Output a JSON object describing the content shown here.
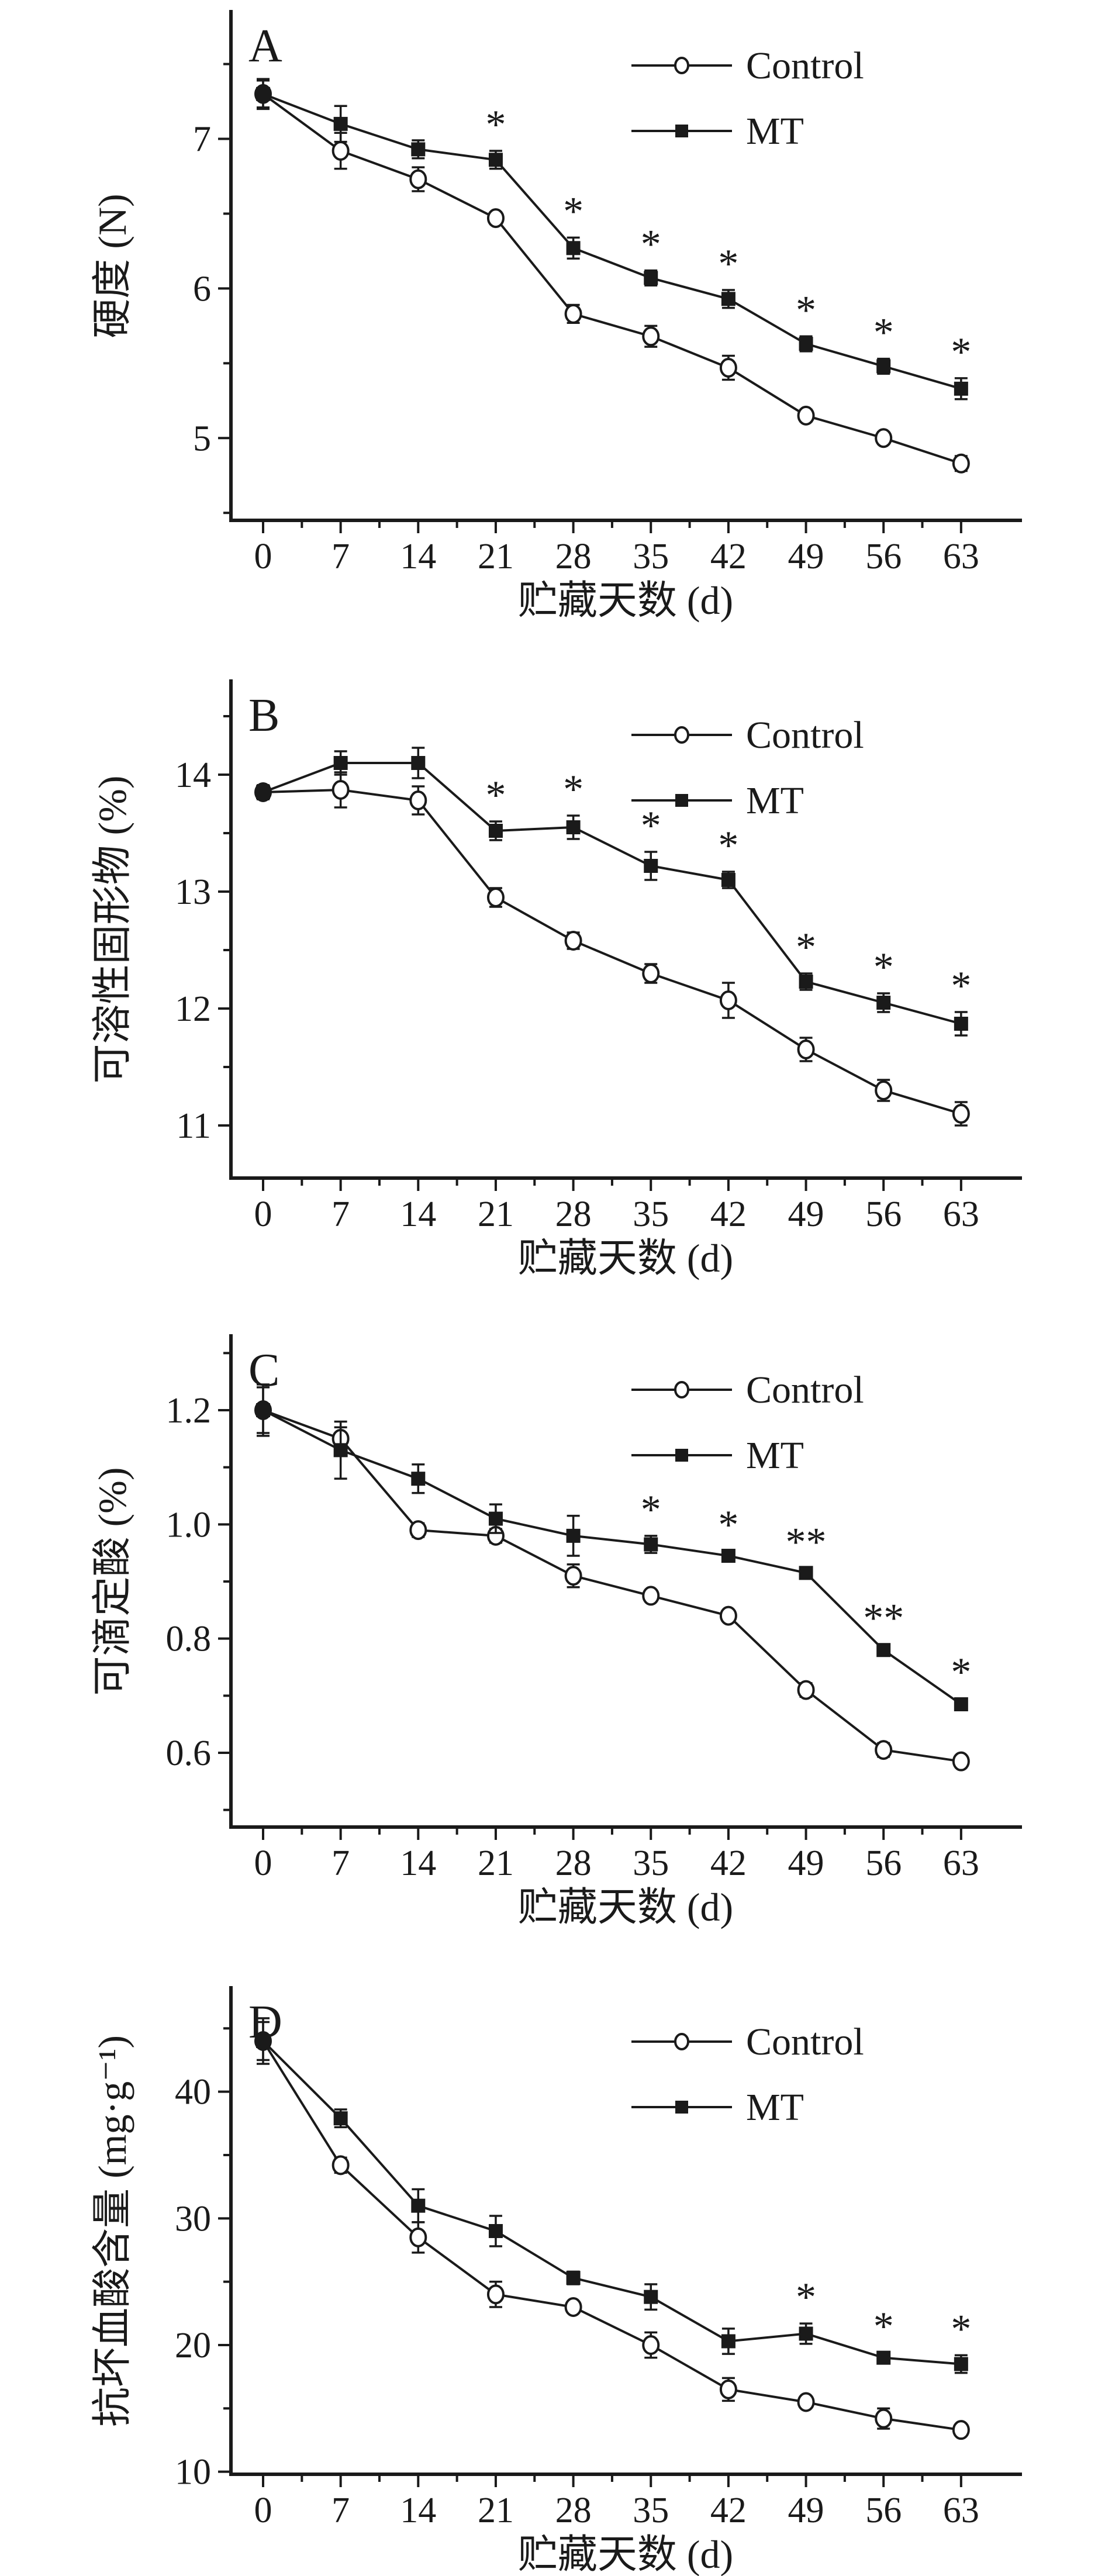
{
  "colors": {
    "foreground": "#1a1a1a",
    "background": "#ffffff"
  },
  "chart_data": [
    {
      "type": "line",
      "panel_label": "A",
      "xlabel": "贮藏天数 (d)",
      "ylabel": "硬度 (N)",
      "x": [
        0,
        7,
        14,
        21,
        28,
        35,
        42,
        49,
        56,
        63
      ],
      "xtick_labels": [
        "0",
        "7",
        "14",
        "21",
        "28",
        "35",
        "42",
        "49",
        "56",
        "63"
      ],
      "xminor": [
        3.5,
        10.5,
        17.5,
        24.5,
        31.5,
        38.5,
        45.5,
        52.5,
        59.5
      ],
      "ylim": [
        4.45,
        7.85
      ],
      "yticks": [
        {
          "v": 5,
          "label": "5"
        },
        {
          "v": 6,
          "label": "6"
        },
        {
          "v": 7,
          "label": "7"
        }
      ],
      "yminor": [
        4.5,
        5.5,
        6.5,
        7.5
      ],
      "grid": false,
      "legend_position": "top-right",
      "series": [
        {
          "name": "Control",
          "marker": "open-circle",
          "values": [
            7.3,
            6.92,
            6.73,
            6.47,
            5.83,
            5.68,
            5.47,
            5.15,
            5.0,
            4.83
          ],
          "errors": [
            0.1,
            0.12,
            0.08,
            0.04,
            0.06,
            0.07,
            0.08,
            0.04,
            0.04,
            0.05
          ],
          "significance": [
            "",
            "",
            "",
            "",
            "",
            "",
            "",
            "",
            "",
            ""
          ]
        },
        {
          "name": "MT",
          "marker": "filled-square",
          "values": [
            7.3,
            7.1,
            6.93,
            6.86,
            6.27,
            6.07,
            5.93,
            5.63,
            5.48,
            5.33
          ],
          "errors": [
            0.09,
            0.12,
            0.06,
            0.06,
            0.07,
            0.05,
            0.06,
            0.05,
            0.05,
            0.07
          ],
          "significance": [
            "",
            "",
            "",
            "*",
            "*",
            "*",
            "*",
            "*",
            "*",
            "*"
          ]
        }
      ]
    },
    {
      "type": "line",
      "panel_label": "B",
      "xlabel": "贮藏天数 (d)",
      "ylabel": "可溶性固形物 (%)",
      "x": [
        0,
        7,
        14,
        21,
        28,
        35,
        42,
        49,
        56,
        63
      ],
      "xtick_labels": [
        "0",
        "7",
        "14",
        "21",
        "28",
        "35",
        "42",
        "49",
        "56",
        "63"
      ],
      "xminor": [
        3.5,
        10.5,
        17.5,
        24.5,
        31.5,
        38.5,
        45.5,
        52.5,
        59.5
      ],
      "ylim": [
        10.55,
        14.8
      ],
      "yticks": [
        {
          "v": 11,
          "label": "11"
        },
        {
          "v": 12,
          "label": "12"
        },
        {
          "v": 13,
          "label": "13"
        },
        {
          "v": 14,
          "label": "14"
        }
      ],
      "yminor": [
        11.5,
        12.5,
        13.5,
        14.5
      ],
      "grid": false,
      "legend_position": "top-right",
      "series": [
        {
          "name": "Control",
          "marker": "open-circle",
          "values": [
            13.85,
            13.87,
            13.78,
            12.95,
            12.58,
            12.3,
            12.07,
            11.65,
            11.3,
            11.1
          ],
          "errors": [
            0.06,
            0.15,
            0.12,
            0.08,
            0.07,
            0.08,
            0.15,
            0.1,
            0.09,
            0.1
          ],
          "significance": [
            "",
            "",
            "",
            "",
            "",
            "",
            "",
            "",
            "",
            ""
          ]
        },
        {
          "name": "MT",
          "marker": "filled-square",
          "values": [
            13.85,
            14.1,
            14.1,
            13.52,
            13.55,
            13.22,
            13.1,
            12.23,
            12.05,
            11.87
          ],
          "errors": [
            0.06,
            0.1,
            0.13,
            0.08,
            0.1,
            0.12,
            0.07,
            0.07,
            0.08,
            0.1
          ],
          "significance": [
            "",
            "",
            "",
            "*",
            "*",
            "*",
            "*",
            "*",
            "*",
            "*"
          ]
        }
      ]
    },
    {
      "type": "line",
      "panel_label": "C",
      "xlabel": "贮藏天数 (d)",
      "ylabel": "可滴定酸 (%)",
      "x": [
        0,
        7,
        14,
        21,
        28,
        35,
        42,
        49,
        56,
        63
      ],
      "xtick_labels": [
        "0",
        "7",
        "14",
        "21",
        "28",
        "35",
        "42",
        "49",
        "56",
        "63"
      ],
      "xminor": [
        3.5,
        10.5,
        17.5,
        24.5,
        31.5,
        38.5,
        45.5,
        52.5,
        59.5
      ],
      "ylim": [
        0.47,
        1.33
      ],
      "yticks": [
        {
          "v": 0.6,
          "label": "0.6"
        },
        {
          "v": 0.8,
          "label": "0.8"
        },
        {
          "v": 1.0,
          "label": "1.0"
        },
        {
          "v": 1.2,
          "label": "1.2"
        }
      ],
      "yminor": [
        0.5,
        0.7,
        0.9,
        1.1,
        1.3
      ],
      "grid": false,
      "legend_position": "top-right",
      "series": [
        {
          "name": "Control",
          "marker": "open-circle",
          "values": [
            1.2,
            1.15,
            0.99,
            0.98,
            0.91,
            0.875,
            0.84,
            0.71,
            0.605,
            0.585
          ],
          "errors": [
            0.045,
            0.02,
            0.012,
            0.012,
            0.02,
            0.008,
            0.008,
            0.012,
            0.012,
            0.01
          ],
          "significance": [
            "",
            "",
            "",
            "",
            "",
            "",
            "",
            "",
            "",
            ""
          ]
        },
        {
          "name": "MT",
          "marker": "filled-square",
          "values": [
            1.2,
            1.13,
            1.08,
            1.01,
            0.98,
            0.965,
            0.945,
            0.915,
            0.78,
            0.685
          ],
          "errors": [
            0.04,
            0.05,
            0.025,
            0.025,
            0.035,
            0.015,
            0.008,
            0.008,
            0.01,
            0.01
          ],
          "significance": [
            "",
            "",
            "",
            "",
            "",
            "*",
            "*",
            "**",
            "**",
            "*"
          ]
        }
      ]
    },
    {
      "type": "line",
      "panel_label": "D",
      "xlabel": "贮藏天数 (d)",
      "ylabel": "抗坏血酸含量 (mg·g⁻¹)",
      "x": [
        0,
        7,
        14,
        21,
        28,
        35,
        42,
        49,
        56,
        63
      ],
      "xtick_labels": [
        "0",
        "7",
        "14",
        "21",
        "28",
        "35",
        "42",
        "49",
        "56",
        "63"
      ],
      "xminor": [
        3.5,
        10.5,
        17.5,
        24.5,
        31.5,
        38.5,
        45.5,
        52.5,
        59.5
      ],
      "ylim": [
        9.8,
        48.2
      ],
      "yticks": [
        {
          "v": 10,
          "label": "10"
        },
        {
          "v": 20,
          "label": "20"
        },
        {
          "v": 30,
          "label": "30"
        },
        {
          "v": 40,
          "label": "40"
        }
      ],
      "yminor": [
        15,
        25,
        35,
        45
      ],
      "grid": false,
      "legend_position": "top-right",
      "series": [
        {
          "name": "Control",
          "marker": "open-circle",
          "values": [
            44.0,
            34.2,
            28.5,
            24.0,
            23.0,
            20.0,
            16.5,
            15.5,
            14.2,
            13.3
          ],
          "errors": [
            1.8,
            0.6,
            1.2,
            1.0,
            0.4,
            1.0,
            0.9,
            0.4,
            0.8,
            0.3
          ],
          "significance": [
            "",
            "",
            "",
            "",
            "",
            "",
            "",
            "",
            "",
            ""
          ]
        },
        {
          "name": "MT",
          "marker": "filled-square",
          "values": [
            44.0,
            37.9,
            31.0,
            29.0,
            25.3,
            23.8,
            20.3,
            20.9,
            19.0,
            18.5
          ],
          "errors": [
            1.5,
            0.7,
            1.3,
            1.2,
            0.5,
            1.0,
            1.0,
            0.8,
            0.4,
            0.7
          ],
          "significance": [
            "",
            "",
            "",
            "",
            "",
            "",
            "",
            "*",
            "*",
            "*"
          ]
        }
      ]
    }
  ]
}
